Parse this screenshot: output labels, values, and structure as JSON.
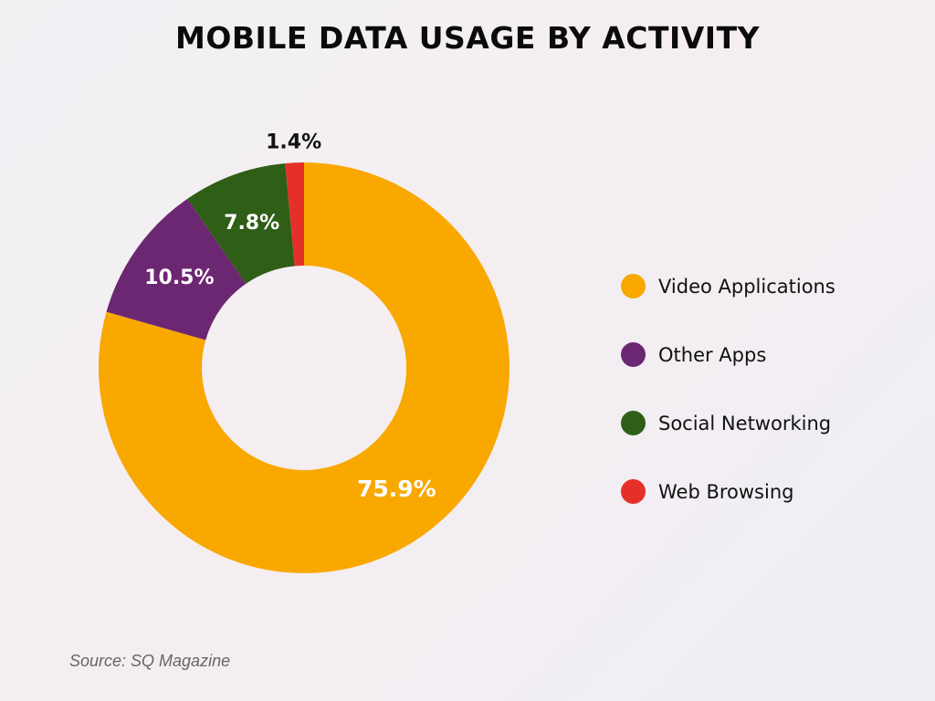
{
  "chart_data": {
    "type": "pie",
    "variant": "donut",
    "title": "MOBILE DATA USAGE BY ACTIVITY",
    "categories": [
      "Video Applications",
      "Other Apps",
      "Social Networking",
      "Web Browsing"
    ],
    "values": [
      75.9,
      10.5,
      7.8,
      1.4
    ],
    "labels": [
      "75.9%",
      "10.5%",
      "7.8%",
      "1.4%"
    ],
    "colors": [
      "#F9A800",
      "#6C2772",
      "#2F5E17",
      "#E5302A"
    ],
    "legend_position": "right",
    "source": "Source: SQ Magazine"
  }
}
